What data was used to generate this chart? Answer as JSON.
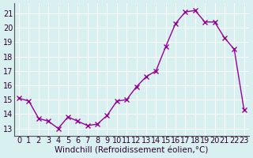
{
  "x": [
    0,
    1,
    2,
    3,
    4,
    5,
    6,
    7,
    8,
    9,
    10,
    11,
    12,
    13,
    14,
    15,
    16,
    17,
    18,
    19,
    20,
    21,
    22,
    23
  ],
  "y": [
    15.1,
    14.9,
    13.7,
    13.5,
    13.0,
    13.8,
    13.5,
    13.2,
    13.3,
    13.9,
    14.9,
    15.0,
    15.9,
    16.6,
    17.0,
    18.7,
    20.3,
    21.1,
    21.2,
    20.4,
    20.4,
    19.3,
    18.5,
    14.3
  ],
  "x_labels": [
    "0",
    "1",
    "2",
    "3",
    "4",
    "5",
    "6",
    "7",
    "8",
    "9",
    "10",
    "11",
    "12",
    "13",
    "14",
    "15",
    "16",
    "17",
    "18",
    "19",
    "20",
    "21",
    "22",
    "23"
  ],
  "ylabel_ticks": [
    13,
    14,
    15,
    16,
    17,
    18,
    19,
    20,
    21
  ],
  "ylim": [
    12.5,
    21.7
  ],
  "xlim": [
    -0.5,
    23.5
  ],
  "line_color": "#990099",
  "marker": "x",
  "marker_size": 4,
  "bg_color": "#d8f0f0",
  "grid_color": "#ffffff",
  "xlabel": "Windchill (Refroidissement éolien,°C)",
  "xlabel_fontsize": 7.5,
  "tick_fontsize": 7,
  "fig_bg": "#d8f0f0"
}
